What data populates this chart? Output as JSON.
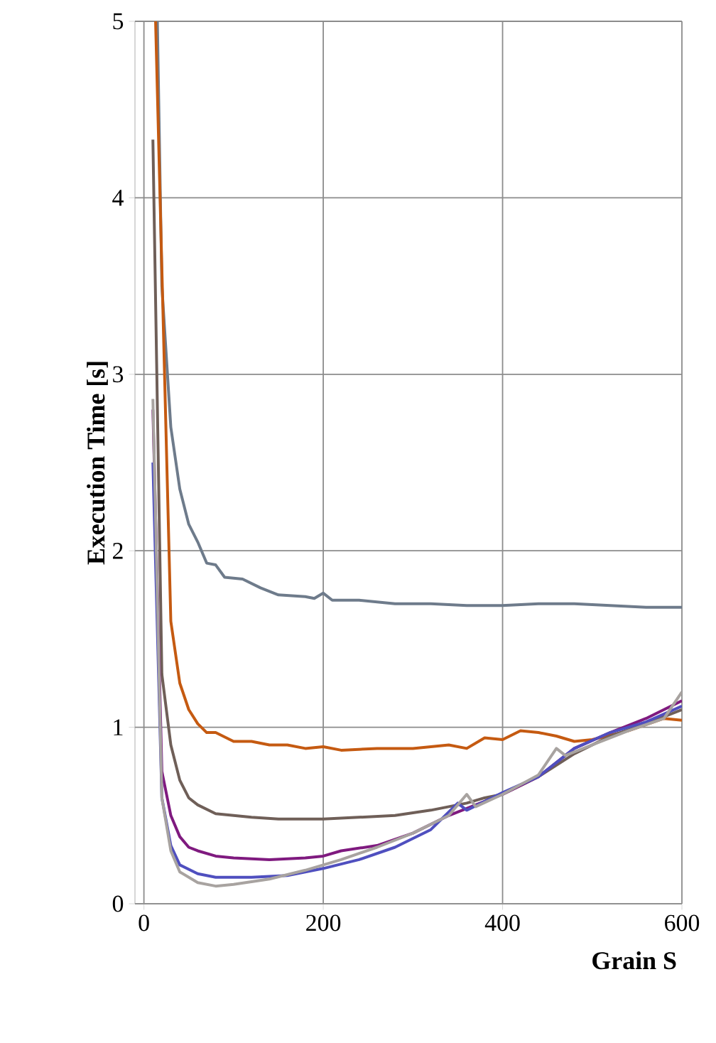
{
  "chart_data": {
    "type": "line",
    "xlabel": "Grain S",
    "ylabel": "Execution Time [s]",
    "xlim": [
      -10,
      600
    ],
    "ylim": [
      0,
      5
    ],
    "xticks": [
      0,
      200,
      400,
      600
    ],
    "yticks": [
      0,
      1,
      2,
      3,
      4,
      5
    ],
    "grid": true,
    "marker": "none",
    "line_style": "solid",
    "series": [
      {
        "color": "#6e7b8b",
        "x": [
          15,
          20,
          30,
          40,
          50,
          60,
          70,
          80,
          90,
          110,
          130,
          150,
          180,
          190,
          200,
          210,
          240,
          280,
          320,
          360,
          400,
          440,
          480,
          520,
          560,
          600
        ],
        "values": [
          5.0,
          3.5,
          2.7,
          2.35,
          2.15,
          2.05,
          1.93,
          1.92,
          1.85,
          1.84,
          1.79,
          1.75,
          1.74,
          1.73,
          1.76,
          1.72,
          1.72,
          1.7,
          1.7,
          1.69,
          1.69,
          1.7,
          1.7,
          1.69,
          1.68,
          1.68
        ]
      },
      {
        "color": "#c55a11",
        "x": [
          13,
          20,
          30,
          40,
          50,
          60,
          70,
          80,
          100,
          120,
          140,
          160,
          180,
          200,
          220,
          260,
          300,
          340,
          360,
          380,
          400,
          420,
          440,
          460,
          480,
          500,
          540,
          580,
          600
        ],
        "values": [
          5.0,
          3.6,
          1.6,
          1.25,
          1.1,
          1.02,
          0.97,
          0.97,
          0.92,
          0.92,
          0.9,
          0.9,
          0.88,
          0.89,
          0.87,
          0.88,
          0.88,
          0.9,
          0.88,
          0.94,
          0.93,
          0.98,
          0.97,
          0.95,
          0.92,
          0.93,
          0.98,
          1.05,
          1.04
        ]
      },
      {
        "color": "#6f5f58",
        "x": [
          10,
          20,
          30,
          40,
          50,
          60,
          80,
          100,
          120,
          150,
          200,
          240,
          280,
          320,
          340,
          360,
          380,
          400,
          440,
          480,
          520,
          560,
          600
        ],
        "values": [
          4.33,
          1.3,
          0.9,
          0.7,
          0.6,
          0.56,
          0.51,
          0.5,
          0.49,
          0.48,
          0.48,
          0.49,
          0.5,
          0.53,
          0.55,
          0.57,
          0.6,
          0.62,
          0.72,
          0.85,
          0.95,
          1.02,
          1.1
        ]
      },
      {
        "color": "#7f1a7f",
        "x": [
          10,
          20,
          30,
          40,
          50,
          60,
          80,
          100,
          140,
          180,
          200,
          220,
          260,
          300,
          340,
          380,
          400,
          440,
          480,
          520,
          560,
          600
        ],
        "values": [
          2.8,
          0.75,
          0.5,
          0.38,
          0.32,
          0.3,
          0.27,
          0.26,
          0.25,
          0.26,
          0.27,
          0.3,
          0.33,
          0.4,
          0.5,
          0.58,
          0.62,
          0.72,
          0.88,
          0.97,
          1.05,
          1.15
        ]
      },
      {
        "color": "#4f4fbf",
        "x": [
          10,
          20,
          30,
          40,
          60,
          80,
          120,
          160,
          200,
          240,
          280,
          320,
          350,
          360,
          400,
          440,
          480,
          520,
          560,
          600
        ],
        "values": [
          2.5,
          0.6,
          0.33,
          0.22,
          0.17,
          0.15,
          0.15,
          0.16,
          0.2,
          0.25,
          0.32,
          0.42,
          0.57,
          0.53,
          0.63,
          0.72,
          0.88,
          0.97,
          1.03,
          1.12
        ]
      },
      {
        "color": "#a8a3a0",
        "x": [
          10,
          20,
          30,
          40,
          60,
          80,
          100,
          140,
          180,
          220,
          260,
          300,
          340,
          360,
          370,
          400,
          440,
          460,
          470,
          500,
          540,
          580,
          600
        ],
        "values": [
          2.86,
          0.6,
          0.3,
          0.18,
          0.12,
          0.1,
          0.11,
          0.14,
          0.19,
          0.25,
          0.32,
          0.4,
          0.5,
          0.62,
          0.55,
          0.62,
          0.73,
          0.88,
          0.84,
          0.9,
          0.98,
          1.05,
          1.2
        ]
      }
    ]
  }
}
